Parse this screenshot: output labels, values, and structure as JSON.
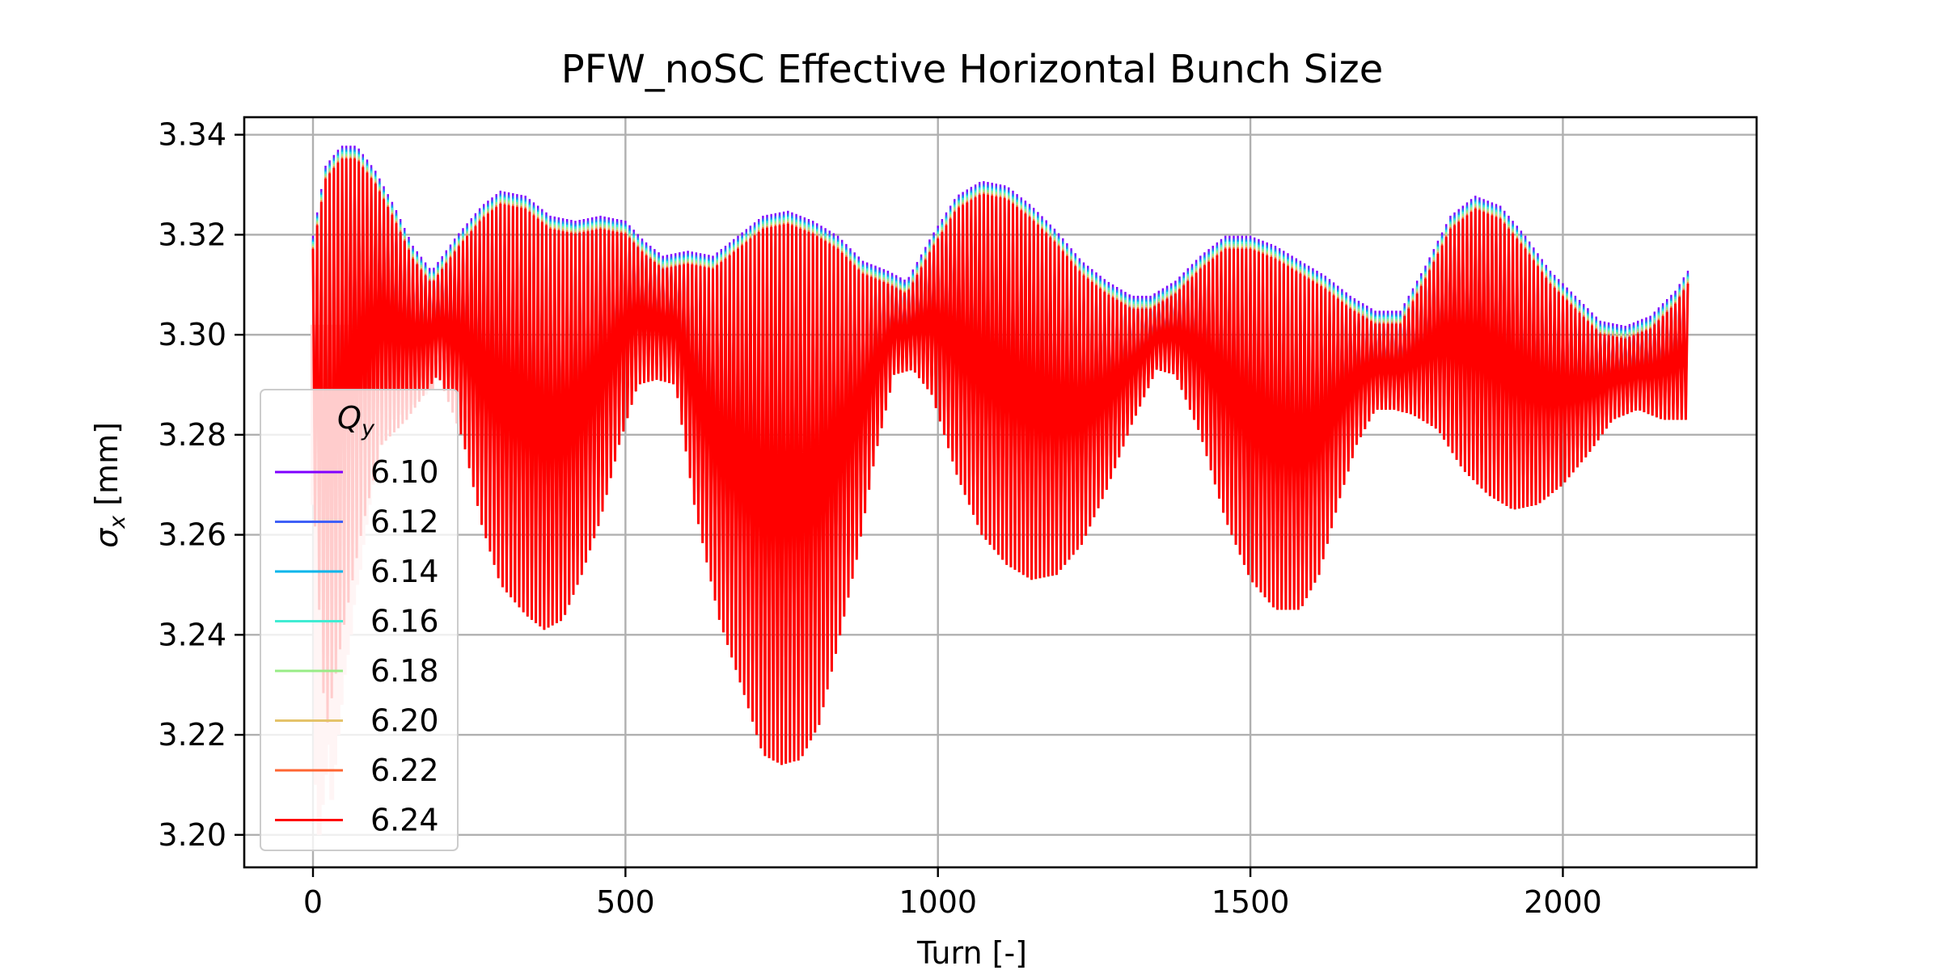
{
  "chart_data": {
    "type": "line",
    "title": "PFW_noSC Effective Horizontal Bunch Size",
    "xlabel": "Turn [-]",
    "ylabel_symbol": "σ",
    "ylabel_sub": "x",
    "ylabel_unit": " [mm]",
    "xlim": [
      -110,
      2310
    ],
    "ylim": [
      3.1935,
      3.3435
    ],
    "xticks": [
      0,
      500,
      1000,
      1500,
      2000
    ],
    "xtick_labels": [
      "0",
      "500",
      "1000",
      "1500",
      "2000"
    ],
    "yticks": [
      3.2,
      3.22,
      3.24,
      3.26,
      3.28,
      3.3,
      3.32,
      3.34
    ],
    "ytick_labels": [
      "3.20",
      "3.22",
      "3.24",
      "3.26",
      "3.28",
      "3.30",
      "3.32",
      "3.34"
    ],
    "grid": true,
    "legend": {
      "title_symbol": "Q",
      "title_sub": "y",
      "placement": "lower-left"
    },
    "x_end": 2200,
    "mean": 3.302,
    "upper_envelope": {
      "x": [
        0,
        20,
        45,
        70,
        100,
        130,
        160,
        190,
        230,
        270,
        300,
        340,
        380,
        420,
        460,
        500,
        530,
        560,
        600,
        640,
        680,
        720,
        760,
        800,
        840,
        880,
        920,
        950,
        990,
        1030,
        1070,
        1110,
        1150,
        1190,
        1230,
        1270,
        1310,
        1340,
        1380,
        1420,
        1460,
        1500,
        1540,
        1580,
        1620,
        1660,
        1700,
        1740,
        1780,
        1820,
        1860,
        1900,
        1940,
        1980,
        2020,
        2060,
        2100,
        2140,
        2180,
        2200
      ],
      "y": [
        3.318,
        3.332,
        3.336,
        3.336,
        3.331,
        3.324,
        3.316,
        3.311,
        3.318,
        3.324,
        3.327,
        3.326,
        3.322,
        3.321,
        3.322,
        3.321,
        3.317,
        3.314,
        3.315,
        3.314,
        3.318,
        3.322,
        3.323,
        3.321,
        3.318,
        3.313,
        3.311,
        3.309,
        3.318,
        3.326,
        3.329,
        3.328,
        3.324,
        3.319,
        3.313,
        3.309,
        3.306,
        3.306,
        3.309,
        3.314,
        3.318,
        3.318,
        3.316,
        3.313,
        3.31,
        3.306,
        3.303,
        3.303,
        3.312,
        3.322,
        3.326,
        3.324,
        3.318,
        3.311,
        3.306,
        3.301,
        3.3,
        3.302,
        3.307,
        3.311
      ]
    },
    "lower_envelope": {
      "x": [
        0,
        20,
        50,
        80,
        110,
        150,
        200,
        240,
        270,
        300,
        340,
        370,
        400,
        430,
        460,
        490,
        520,
        550,
        580,
        610,
        650,
        690,
        720,
        750,
        780,
        810,
        840,
        870,
        900,
        930,
        960,
        990,
        1030,
        1070,
        1110,
        1150,
        1190,
        1230,
        1270,
        1310,
        1350,
        1380,
        1420,
        1460,
        1500,
        1540,
        1580,
        1610,
        1640,
        1670,
        1700,
        1730,
        1760,
        1800,
        1840,
        1880,
        1920,
        1960,
        2000,
        2040,
        2080,
        2120,
        2160,
        2200
      ],
      "y": [
        3.27,
        3.22,
        3.242,
        3.262,
        3.278,
        3.283,
        3.292,
        3.279,
        3.262,
        3.25,
        3.244,
        3.241,
        3.243,
        3.252,
        3.263,
        3.278,
        3.29,
        3.291,
        3.29,
        3.266,
        3.243,
        3.228,
        3.216,
        3.214,
        3.215,
        3.222,
        3.238,
        3.255,
        3.276,
        3.292,
        3.293,
        3.288,
        3.272,
        3.26,
        3.254,
        3.251,
        3.252,
        3.258,
        3.269,
        3.282,
        3.293,
        3.292,
        3.28,
        3.263,
        3.251,
        3.245,
        3.245,
        3.252,
        3.266,
        3.278,
        3.285,
        3.285,
        3.284,
        3.281,
        3.273,
        3.268,
        3.265,
        3.266,
        3.27,
        3.276,
        3.283,
        3.285,
        3.283,
        3.283
      ]
    },
    "series": [
      {
        "name": "6.10",
        "color": "#7f00ff",
        "offset": 0.0018
      },
      {
        "name": "6.12",
        "color": "#3f60f7",
        "offset": 0.0013
      },
      {
        "name": "6.14",
        "color": "#00b5eb",
        "offset": 0.0009
      },
      {
        "name": "6.16",
        "color": "#40ecd3",
        "offset": 0.0006
      },
      {
        "name": "6.18",
        "color": "#98ec86",
        "offset": 0.0002
      },
      {
        "name": "6.20",
        "color": "#e4c36a",
        "offset": -0.0002
      },
      {
        "name": "6.22",
        "color": "#ff6532",
        "offset": -0.0005
      },
      {
        "name": "6.24",
        "color": "#ff0000",
        "offset": -0.0008
      }
    ],
    "faded_region": {
      "x": [
        0,
        5,
        10,
        15,
        20,
        25,
        30,
        35,
        40,
        45,
        50,
        55,
        60,
        65,
        70,
        75,
        80,
        85,
        90,
        95,
        100,
        110,
        120,
        130,
        140,
        150,
        160,
        170,
        180,
        190
      ],
      "y": [
        3.266,
        3.21,
        3.2,
        3.206,
        3.212,
        3.218,
        3.207,
        3.214,
        3.22,
        3.226,
        3.232,
        3.236,
        3.24,
        3.246,
        3.25,
        3.253,
        3.258,
        3.262,
        3.266,
        3.27,
        3.274,
        3.278,
        3.281,
        3.283,
        3.284,
        3.285,
        3.286,
        3.287,
        3.288,
        3.289
      ]
    }
  }
}
